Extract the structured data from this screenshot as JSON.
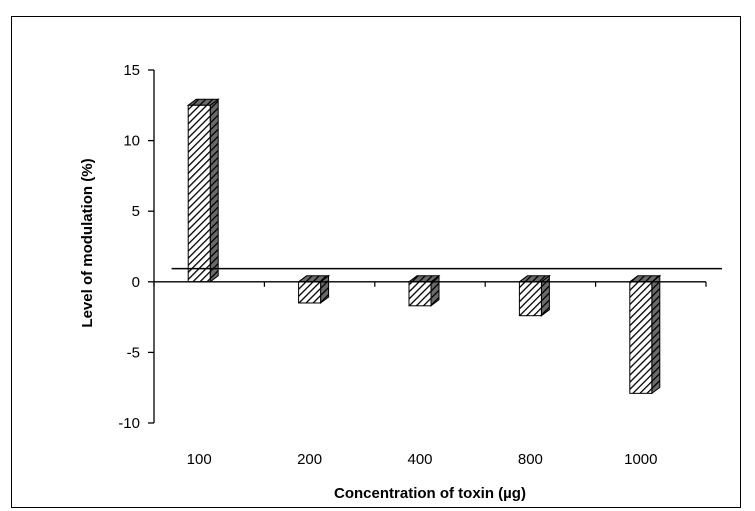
{
  "chart_data": {
    "type": "bar",
    "title": "",
    "xlabel": "Concentration of toxin (µg)",
    "ylabel": "Level of modulation (%)",
    "categories": [
      "100",
      "200",
      "400",
      "800",
      "1000"
    ],
    "values": [
      12.5,
      -1.5,
      -1.7,
      -2.4,
      -7.9
    ],
    "ylim": [
      -10,
      15
    ],
    "yticks": [
      -10,
      -5,
      0,
      5,
      10,
      15
    ],
    "grid": false,
    "legend": "none",
    "bar_pattern": "diagonal-hatch",
    "colors": {
      "bar_fill": "#ffffff",
      "bar_stroke": "#000000",
      "side": "#444444",
      "top": "#777777"
    }
  }
}
